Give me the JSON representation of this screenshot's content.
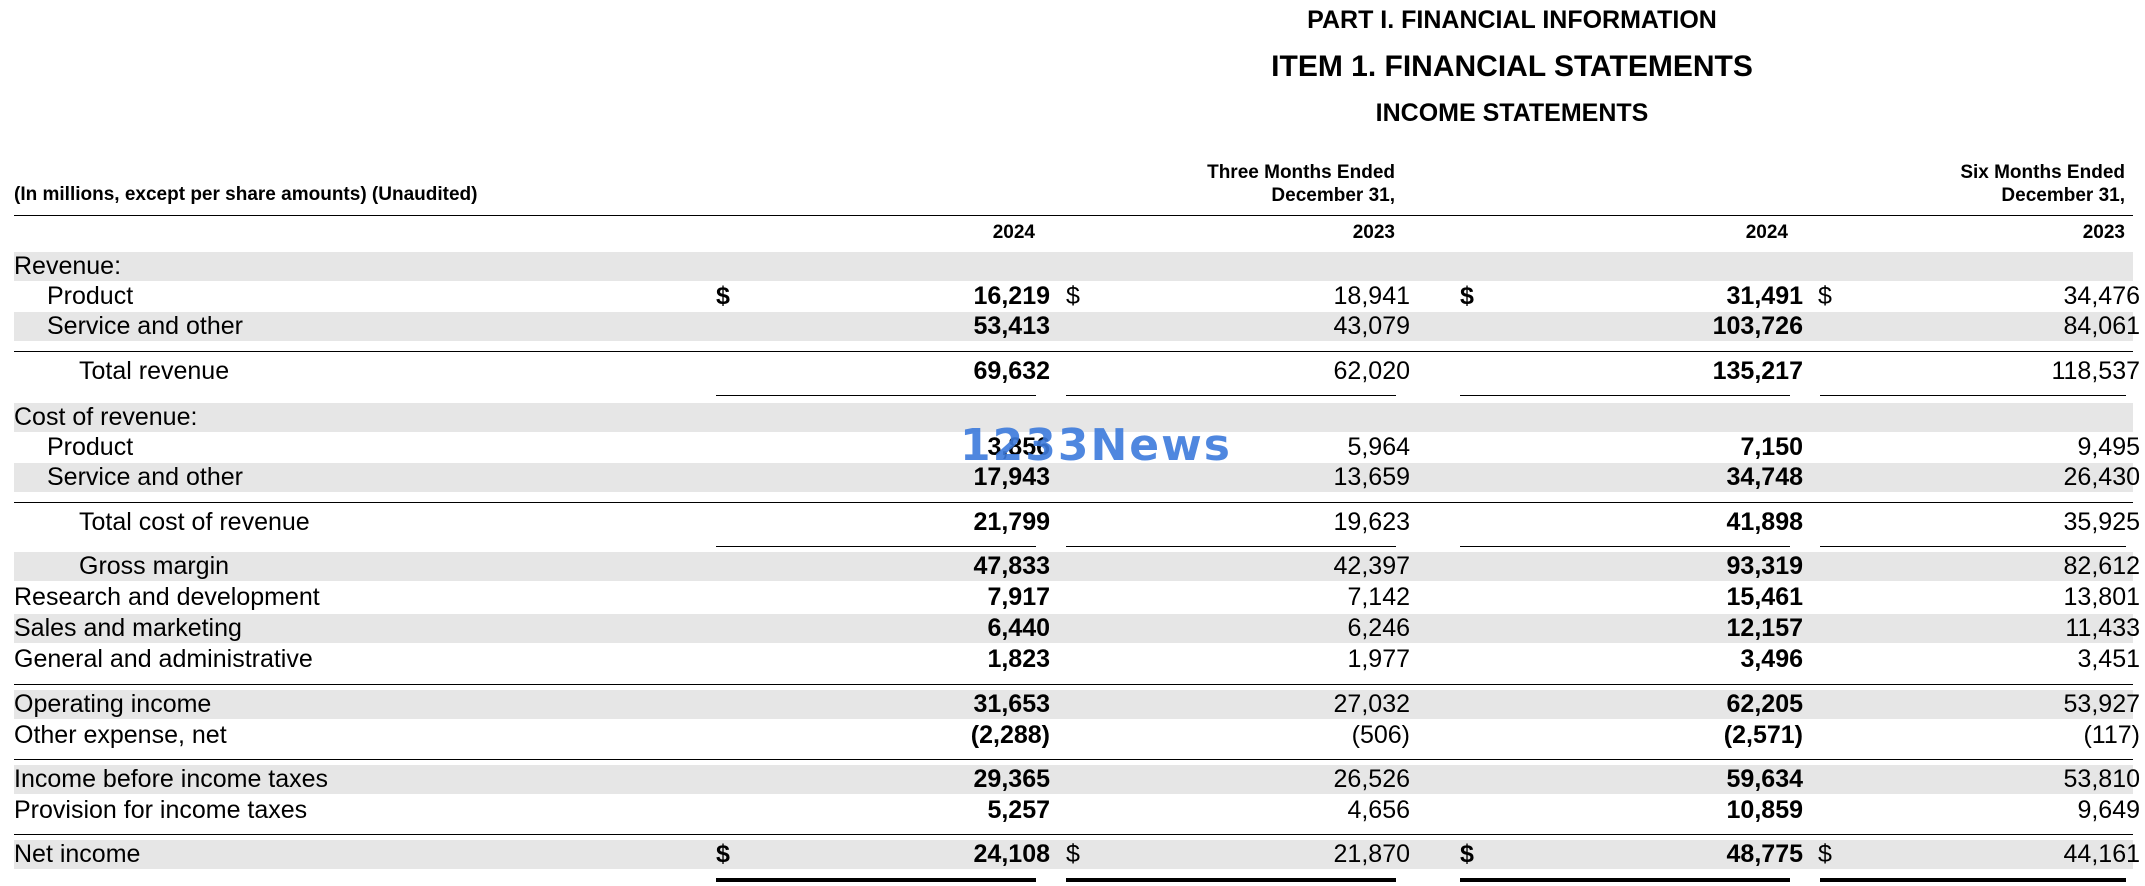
{
  "header": {
    "part": "PART I. FINANCIAL INFORMATION",
    "item": "ITEM 1. FINANCIAL STATEMENTS",
    "statement": "INCOME STATEMENTS"
  },
  "table": {
    "caption": "(In millions, except per share amounts) (Unaudited)",
    "groups": {
      "three_months": [
        "Three Months Ended",
        "December 31,"
      ],
      "six_months": [
        "Six Months Ended",
        "December 31,"
      ]
    },
    "years": [
      "2024",
      "2023",
      "2024",
      "2023"
    ],
    "currency_symbol": "$",
    "rows": {
      "revenue_header": {
        "label": "Revenue:"
      },
      "product_revenue": {
        "label": "Product",
        "values": [
          "16,219",
          "18,941",
          "31,491",
          "34,476"
        ]
      },
      "service_revenue": {
        "label": "Service and other",
        "values": [
          "53,413",
          "43,079",
          "103,726",
          "84,061"
        ]
      },
      "total_revenue": {
        "label": "Total revenue",
        "values": [
          "69,632",
          "62,020",
          "135,217",
          "118,537"
        ]
      },
      "cost_header": {
        "label": "Cost of revenue:"
      },
      "product_cost": {
        "label": "Product",
        "values": [
          "3,856",
          "5,964",
          "7,150",
          "9,495"
        ]
      },
      "service_cost": {
        "label": "Service and other",
        "values": [
          "17,943",
          "13,659",
          "34,748",
          "26,430"
        ]
      },
      "total_cost": {
        "label": "Total cost of revenue",
        "values": [
          "21,799",
          "19,623",
          "41,898",
          "35,925"
        ]
      },
      "gross_margin": {
        "label": "Gross margin",
        "values": [
          "47,833",
          "42,397",
          "93,319",
          "82,612"
        ]
      },
      "rnd": {
        "label": "Research and development",
        "values": [
          "7,917",
          "7,142",
          "15,461",
          "13,801"
        ]
      },
      "sales_marketing": {
        "label": "Sales and marketing",
        "values": [
          "6,440",
          "6,246",
          "12,157",
          "11,433"
        ]
      },
      "gna": {
        "label": "General and administrative",
        "values": [
          "1,823",
          "1,977",
          "3,496",
          "3,451"
        ]
      },
      "operating_income": {
        "label": "Operating income",
        "values": [
          "31,653",
          "27,032",
          "62,205",
          "53,927"
        ]
      },
      "other_expense": {
        "label": "Other expense, net",
        "values": [
          "(2,288)",
          "(506)",
          "(2,571)",
          "(117)"
        ]
      },
      "pretax_income": {
        "label": "Income before income taxes",
        "values": [
          "29,365",
          "26,526",
          "59,634",
          "53,810"
        ]
      },
      "tax_provision": {
        "label": "Provision for income taxes",
        "values": [
          "5,257",
          "4,656",
          "10,859",
          "9,649"
        ]
      },
      "net_income": {
        "label": "Net income",
        "values": [
          "24,108",
          "21,870",
          "48,775",
          "44,161"
        ]
      }
    }
  },
  "watermark": {
    "text": "1233News",
    "color": "#3d7bdc"
  }
}
